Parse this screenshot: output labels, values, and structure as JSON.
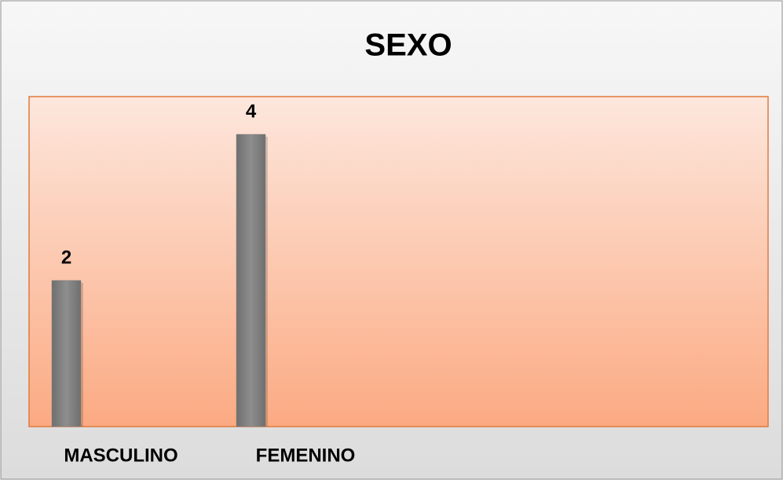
{
  "chart_data": {
    "type": "bar",
    "title": "SEXO",
    "categories": [
      "MASCULINO",
      "FEMENINO"
    ],
    "values": [
      2,
      4
    ],
    "color": "#7f7f7f"
  }
}
